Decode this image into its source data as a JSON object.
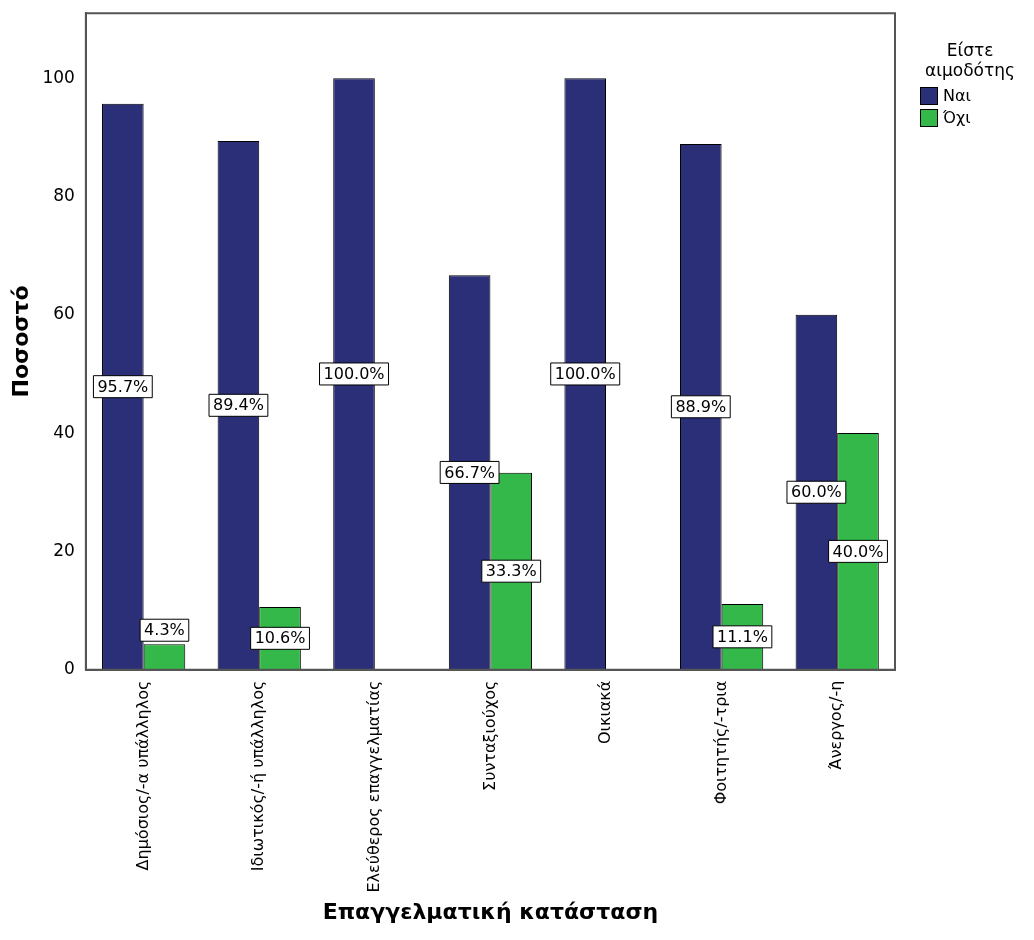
{
  "chart_data": {
    "type": "bar",
    "xlabel": "Επαγγελματική κατάσταση",
    "ylabel": "Ποσοστό",
    "legend_title": "Είστε αιμοδότης",
    "categories": [
      "Δημόσιος/-α υπάλληλος",
      "Ιδιωτικός/-ή υπάλληλος",
      "Ελεύθερος επαγγελματίας",
      "Συνταξιούχος",
      "Οικιακά",
      "Φοιτητής/-τρια",
      "Άνεργος/-η"
    ],
    "series": [
      {
        "name": "Ναι",
        "color": "#2b2f77",
        "values": [
          95.7,
          89.4,
          100.0,
          66.7,
          100.0,
          88.9,
          60.0
        ],
        "value_labels": [
          "95.7%",
          "89.4%",
          "100.0%",
          "66.7%",
          "100.0%",
          "88.9%",
          "60.0%"
        ]
      },
      {
        "name": "Όχι",
        "color": "#33b849",
        "values": [
          4.3,
          10.6,
          null,
          33.3,
          null,
          11.1,
          40.0
        ],
        "value_labels": [
          "4.3%",
          "10.6%",
          null,
          "33.3%",
          null,
          "11.1%",
          "40.0%"
        ]
      }
    ],
    "ylim": [
      0,
      111
    ],
    "yticks": [
      0,
      20,
      40,
      60,
      80,
      100
    ],
    "grid": false,
    "legend": "top right"
  }
}
